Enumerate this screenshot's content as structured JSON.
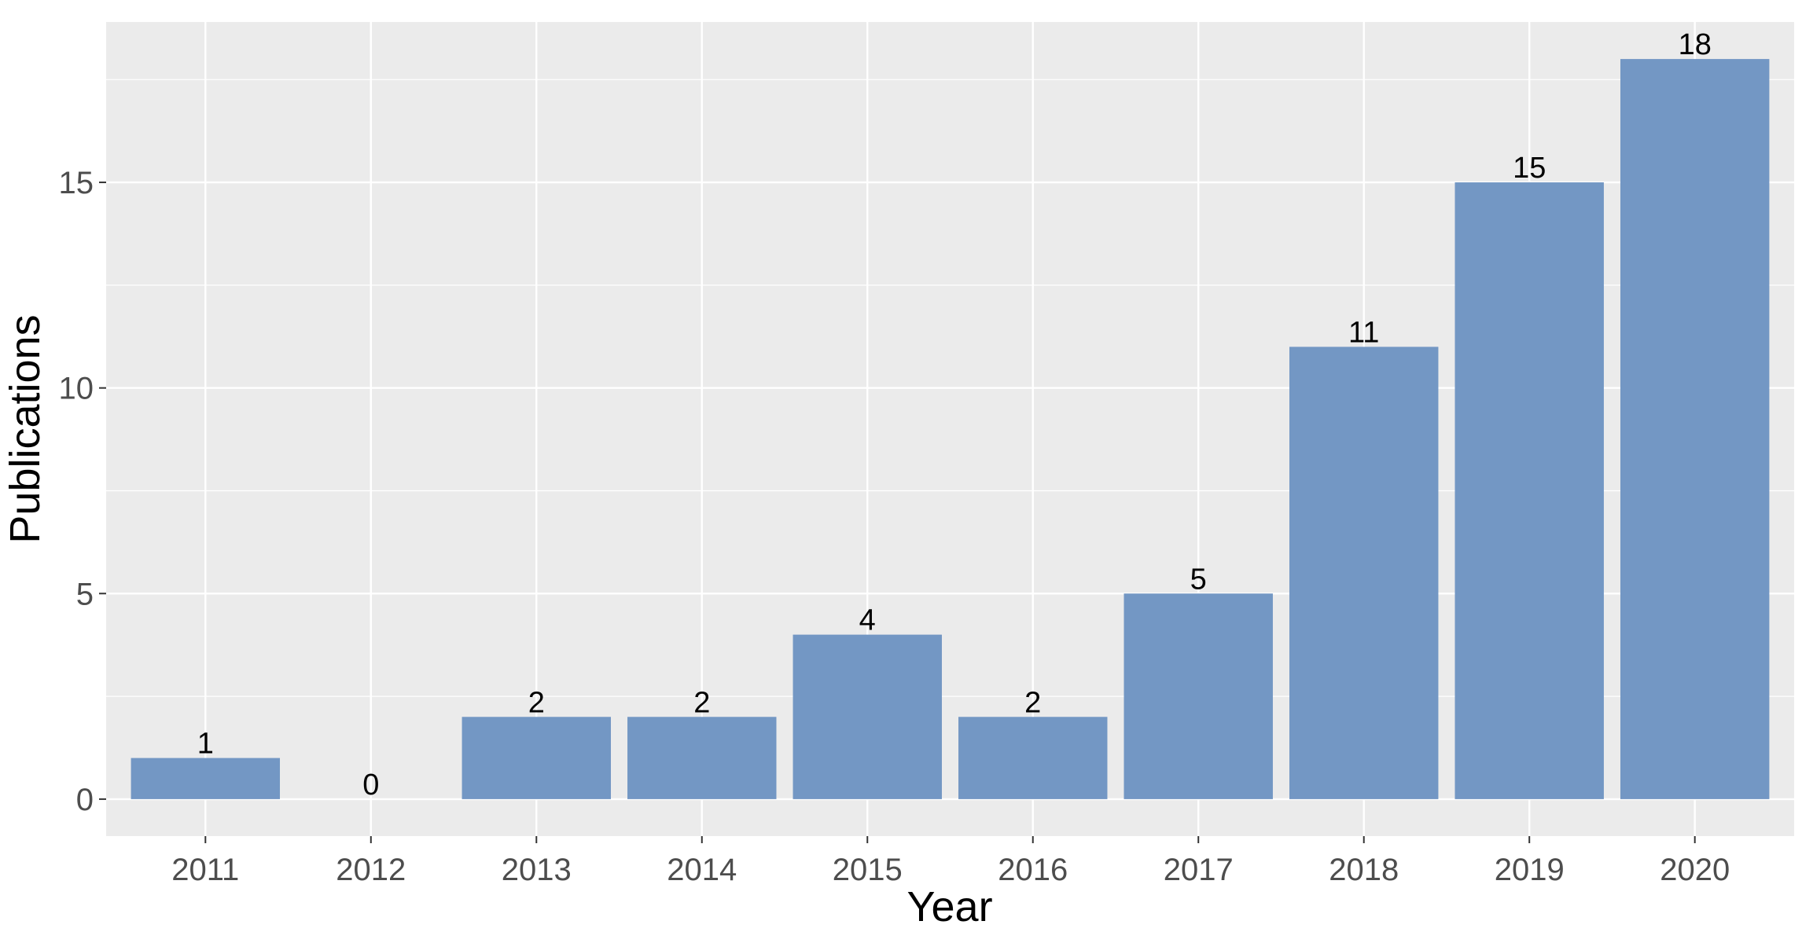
{
  "colors": {
    "panel_background": "#EBEBEB",
    "grid_major": "#FFFFFF",
    "bar_fill": "#7397C4",
    "tick": "#333333",
    "tick_label": "#4D4D4D",
    "text": "#000000"
  },
  "chart_data": {
    "type": "bar",
    "title": "",
    "xlabel": "Year",
    "ylabel": "Publications",
    "categories": [
      "2011",
      "2012",
      "2013",
      "2014",
      "2015",
      "2016",
      "2017",
      "2018",
      "2019",
      "2020"
    ],
    "values": [
      1,
      0,
      2,
      2,
      4,
      2,
      5,
      11,
      15,
      18
    ],
    "value_labels": [
      "1",
      "0",
      "2",
      "2",
      "4",
      "2",
      "5",
      "11",
      "15",
      "18"
    ],
    "ylim": [
      -0.9,
      18.9
    ],
    "yticks": [
      0,
      5,
      10,
      15
    ],
    "ytick_labels": [
      "0",
      "5",
      "10",
      "15"
    ],
    "grid": true,
    "legend": "none"
  }
}
